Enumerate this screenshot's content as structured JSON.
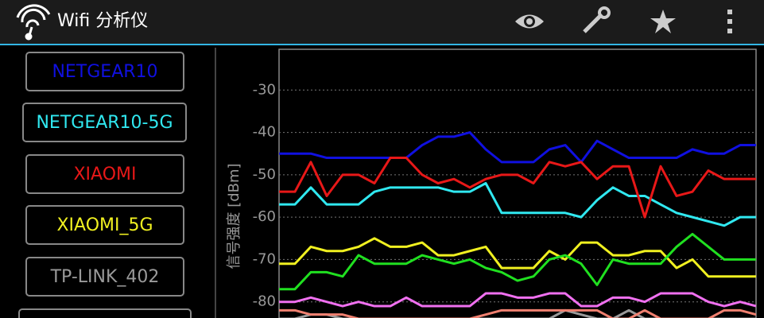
{
  "app_bar": {
    "title": "Wifi 分析仪"
  },
  "chart_data": {
    "type": "line",
    "y_label": "信号强度 [dBm]",
    "ylim": [
      -84,
      -20
    ],
    "yticks": [
      -30,
      -40,
      -50,
      -60,
      -70,
      -80
    ],
    "grid": true,
    "series": [
      {
        "name": "NETGEAR10",
        "color": "#1010e0",
        "values": [
          -45,
          -45,
          -45,
          -46,
          -46,
          -46,
          -46,
          -46,
          -46,
          -43,
          -41,
          -41,
          -40,
          -44,
          -47,
          -47,
          -47,
          -44,
          -43,
          -47,
          -42,
          -44,
          -46,
          -46,
          -46,
          -46,
          -44,
          -45,
          -45,
          -43,
          -43
        ]
      },
      {
        "name": "NETGEAR10-5G",
        "color": "#30e8f0",
        "values": [
          -57,
          -57,
          -53,
          -57,
          -57,
          -57,
          -54,
          -53,
          -53,
          -53,
          -53,
          -54,
          -54,
          -52,
          -59,
          -59,
          -59,
          -59,
          -59,
          -60,
          -56,
          -53,
          -55,
          -55,
          -57,
          -59,
          -60,
          -61,
          -62,
          -60,
          -60
        ]
      },
      {
        "name": "XIAOMI",
        "color": "#e81818",
        "values": [
          -54,
          -54,
          -47,
          -55,
          -50,
          -50,
          -52,
          -46,
          -46,
          -50,
          -52,
          -51,
          -53,
          -51,
          -50,
          -50,
          -52,
          -47,
          -48,
          -47,
          -51,
          -48,
          -48,
          -60,
          -48,
          -55,
          -54,
          -49,
          -51,
          -51,
          -51
        ]
      },
      {
        "name": "XIAOMI_5G",
        "color": "#f0f020",
        "values": [
          -71,
          -71,
          -67,
          -68,
          -68,
          -67,
          -65,
          -67,
          -67,
          -66,
          -69,
          -69,
          -68,
          -67,
          -72,
          -72,
          -72,
          -68,
          -70,
          -66,
          -66,
          -69,
          -69,
          -68,
          -68,
          -72,
          -70,
          -74,
          -74,
          -74,
          -74
        ]
      },
      {
        "name": "TP-LINK_402",
        "color": "#9a9a9a",
        "values": [
          -84,
          -84,
          -83,
          -83,
          -84,
          -84,
          -84,
          -84,
          -84,
          -84,
          -84,
          -84,
          -84,
          -84,
          -84,
          -84,
          -84,
          -84,
          -82,
          -83,
          -84,
          -84,
          -82,
          -84,
          -84,
          -84,
          -84,
          -84,
          -84,
          -84,
          -84
        ]
      },
      {
        "color": "#20e020",
        "values": [
          -77,
          -77,
          -73,
          -73,
          -74,
          -69,
          -71,
          -71,
          -71,
          -69,
          -70,
          -71,
          -70,
          -72,
          -73,
          -75,
          -74,
          -70,
          -69,
          -71,
          -76,
          -70,
          -71,
          -71,
          -71,
          -67,
          -64,
          -67,
          -70,
          -70,
          -70
        ]
      },
      {
        "color": "#f070f0",
        "values": [
          -80,
          -80,
          -79,
          -80,
          -81,
          -80,
          -81,
          -81,
          -79,
          -81,
          -81,
          -81,
          -81,
          -78,
          -78,
          -79,
          -79,
          -78,
          -78,
          -81,
          -81,
          -79,
          -79,
          -80,
          -78,
          -78,
          -78,
          -80,
          -81,
          -80,
          -81
        ]
      },
      {
        "color": "#f08070",
        "values": [
          -82,
          -82,
          -83,
          -83,
          -83,
          -84,
          -84,
          -84,
          -84,
          -84,
          -84,
          -84,
          -84,
          -83,
          -82,
          -82,
          -82,
          -82,
          -82,
          -82,
          -82,
          -84,
          -84,
          -82,
          -84,
          -84,
          -84,
          -84,
          -82,
          -82,
          -83
        ]
      }
    ]
  }
}
